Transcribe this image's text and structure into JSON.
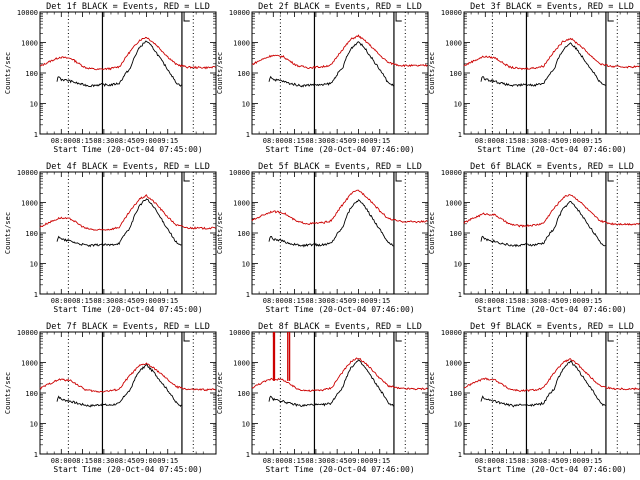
{
  "chart_data": [
    {
      "type": "line",
      "title": "Det 1f BLACK = Events, RED = LLD",
      "xlabel": "Start Time (20-Oct-04 07:45:00)",
      "ylabel": "Counts/sec",
      "y_scale": "log",
      "ylim": [
        1,
        10000
      ],
      "x_ticks": [
        "08:00",
        "08:15",
        "08:30",
        "08:45",
        "09:00",
        "09:15"
      ],
      "y_ticks": [
        "1",
        "10",
        "100",
        "1000",
        "10000"
      ],
      "series": [
        {
          "name": "Events",
          "color": "#000000"
        },
        {
          "name": "LLD",
          "color": "#cc0000"
        }
      ]
    },
    {
      "type": "line",
      "title": "Det 2f BLACK = Events, RED = LLD",
      "xlabel": "Start Time (20-Oct-04 07:46:00)",
      "ylabel": "Counts/sec",
      "y_scale": "log",
      "ylim": [
        1,
        10000
      ],
      "x_ticks": [
        "08:00",
        "08:15",
        "08:30",
        "08:45",
        "09:00",
        "09:15"
      ],
      "y_ticks": [
        "1",
        "10",
        "100",
        "1000",
        "10000"
      ],
      "series": [
        {
          "name": "Events",
          "color": "#000000"
        },
        {
          "name": "LLD",
          "color": "#cc0000"
        }
      ]
    },
    {
      "type": "line",
      "title": "Det 3f BLACK = Events, RED = LLD",
      "xlabel": "Start Time (20-Oct-04 07:46:00)",
      "ylabel": "Counts/sec",
      "y_scale": "log",
      "ylim": [
        1,
        10000
      ],
      "x_ticks": [
        "08:00",
        "08:15",
        "08:30",
        "08:45",
        "09:00",
        "09:15"
      ],
      "y_ticks": [
        "1",
        "10",
        "100",
        "1000",
        "10000"
      ],
      "series": [
        {
          "name": "Events",
          "color": "#000000"
        },
        {
          "name": "LLD",
          "color": "#cc0000"
        }
      ]
    },
    {
      "type": "line",
      "title": "Det 4f BLACK = Events, RED = LLD",
      "xlabel": "Start Time (20-Oct-04 07:45:00)",
      "ylabel": "Counts/sec",
      "y_scale": "log",
      "ylim": [
        1,
        10000
      ],
      "x_ticks": [
        "08:00",
        "08:15",
        "08:30",
        "08:45",
        "09:00",
        "09:15"
      ],
      "y_ticks": [
        "1",
        "10",
        "100",
        "1000",
        "10000"
      ],
      "series": [
        {
          "name": "Events",
          "color": "#000000"
        },
        {
          "name": "LLD",
          "color": "#cc0000"
        }
      ]
    },
    {
      "type": "line",
      "title": "Det 5f BLACK = Events, RED = LLD",
      "xlabel": "Start Time (20-Oct-04 07:46:00)",
      "ylabel": "Counts/sec",
      "y_scale": "log",
      "ylim": [
        1,
        10000
      ],
      "x_ticks": [
        "08:00",
        "08:15",
        "08:30",
        "08:45",
        "09:00",
        "09:15"
      ],
      "y_ticks": [
        "1",
        "10",
        "100",
        "1000",
        "10000"
      ],
      "series": [
        {
          "name": "Events",
          "color": "#000000"
        },
        {
          "name": "LLD",
          "color": "#cc0000"
        }
      ]
    },
    {
      "type": "line",
      "title": "Det 6f BLACK = Events, RED = LLD",
      "xlabel": "Start Time (20-Oct-04 07:46:00)",
      "ylabel": "Counts/sec",
      "y_scale": "log",
      "ylim": [
        1,
        10000
      ],
      "x_ticks": [
        "08:00",
        "08:15",
        "08:30",
        "08:45",
        "09:00",
        "09:15"
      ],
      "y_ticks": [
        "1",
        "10",
        "100",
        "1000",
        "10000"
      ],
      "series": [
        {
          "name": "Events",
          "color": "#000000"
        },
        {
          "name": "LLD",
          "color": "#cc0000"
        }
      ]
    },
    {
      "type": "line",
      "title": "Det 7f BLACK = Events, RED = LLD",
      "xlabel": "Start Time (20-Oct-04 07:45:00)",
      "ylabel": "Counts/sec",
      "y_scale": "log",
      "ylim": [
        1,
        10000
      ],
      "x_ticks": [
        "08:00",
        "08:15",
        "08:30",
        "08:45",
        "09:00",
        "09:15"
      ],
      "y_ticks": [
        "1",
        "10",
        "100",
        "1000",
        "10000"
      ],
      "series": [
        {
          "name": "Events",
          "color": "#000000"
        },
        {
          "name": "LLD",
          "color": "#cc0000"
        }
      ]
    },
    {
      "type": "line",
      "title": "Det 8f BLACK = Events, RED = LLD",
      "xlabel": "Start Time (20-Oct-04 07:46:00)",
      "ylabel": "Counts/sec",
      "y_scale": "log",
      "ylim": [
        1,
        10000
      ],
      "x_ticks": [
        "08:00",
        "08:15",
        "08:30",
        "08:45",
        "09:00",
        "09:15"
      ],
      "y_ticks": [
        "1",
        "10",
        "100",
        "1000",
        "10000"
      ],
      "series": [
        {
          "name": "Events",
          "color": "#000000"
        },
        {
          "name": "LLD",
          "color": "#cc0000"
        }
      ]
    },
    {
      "type": "line",
      "title": "Det 9f BLACK = Events, RED = LLD",
      "xlabel": "Start Time (20-Oct-04 07:46:00)",
      "ylabel": "Counts/sec",
      "y_scale": "log",
      "ylim": [
        1,
        10000
      ],
      "x_ticks": [
        "08:00",
        "08:15",
        "08:30",
        "08:45",
        "09:00",
        "09:15"
      ],
      "y_ticks": [
        "1",
        "10",
        "100",
        "1000",
        "10000"
      ],
      "series": [
        {
          "name": "Events",
          "color": "#000000"
        },
        {
          "name": "LLD",
          "color": "#cc0000"
        }
      ]
    }
  ]
}
